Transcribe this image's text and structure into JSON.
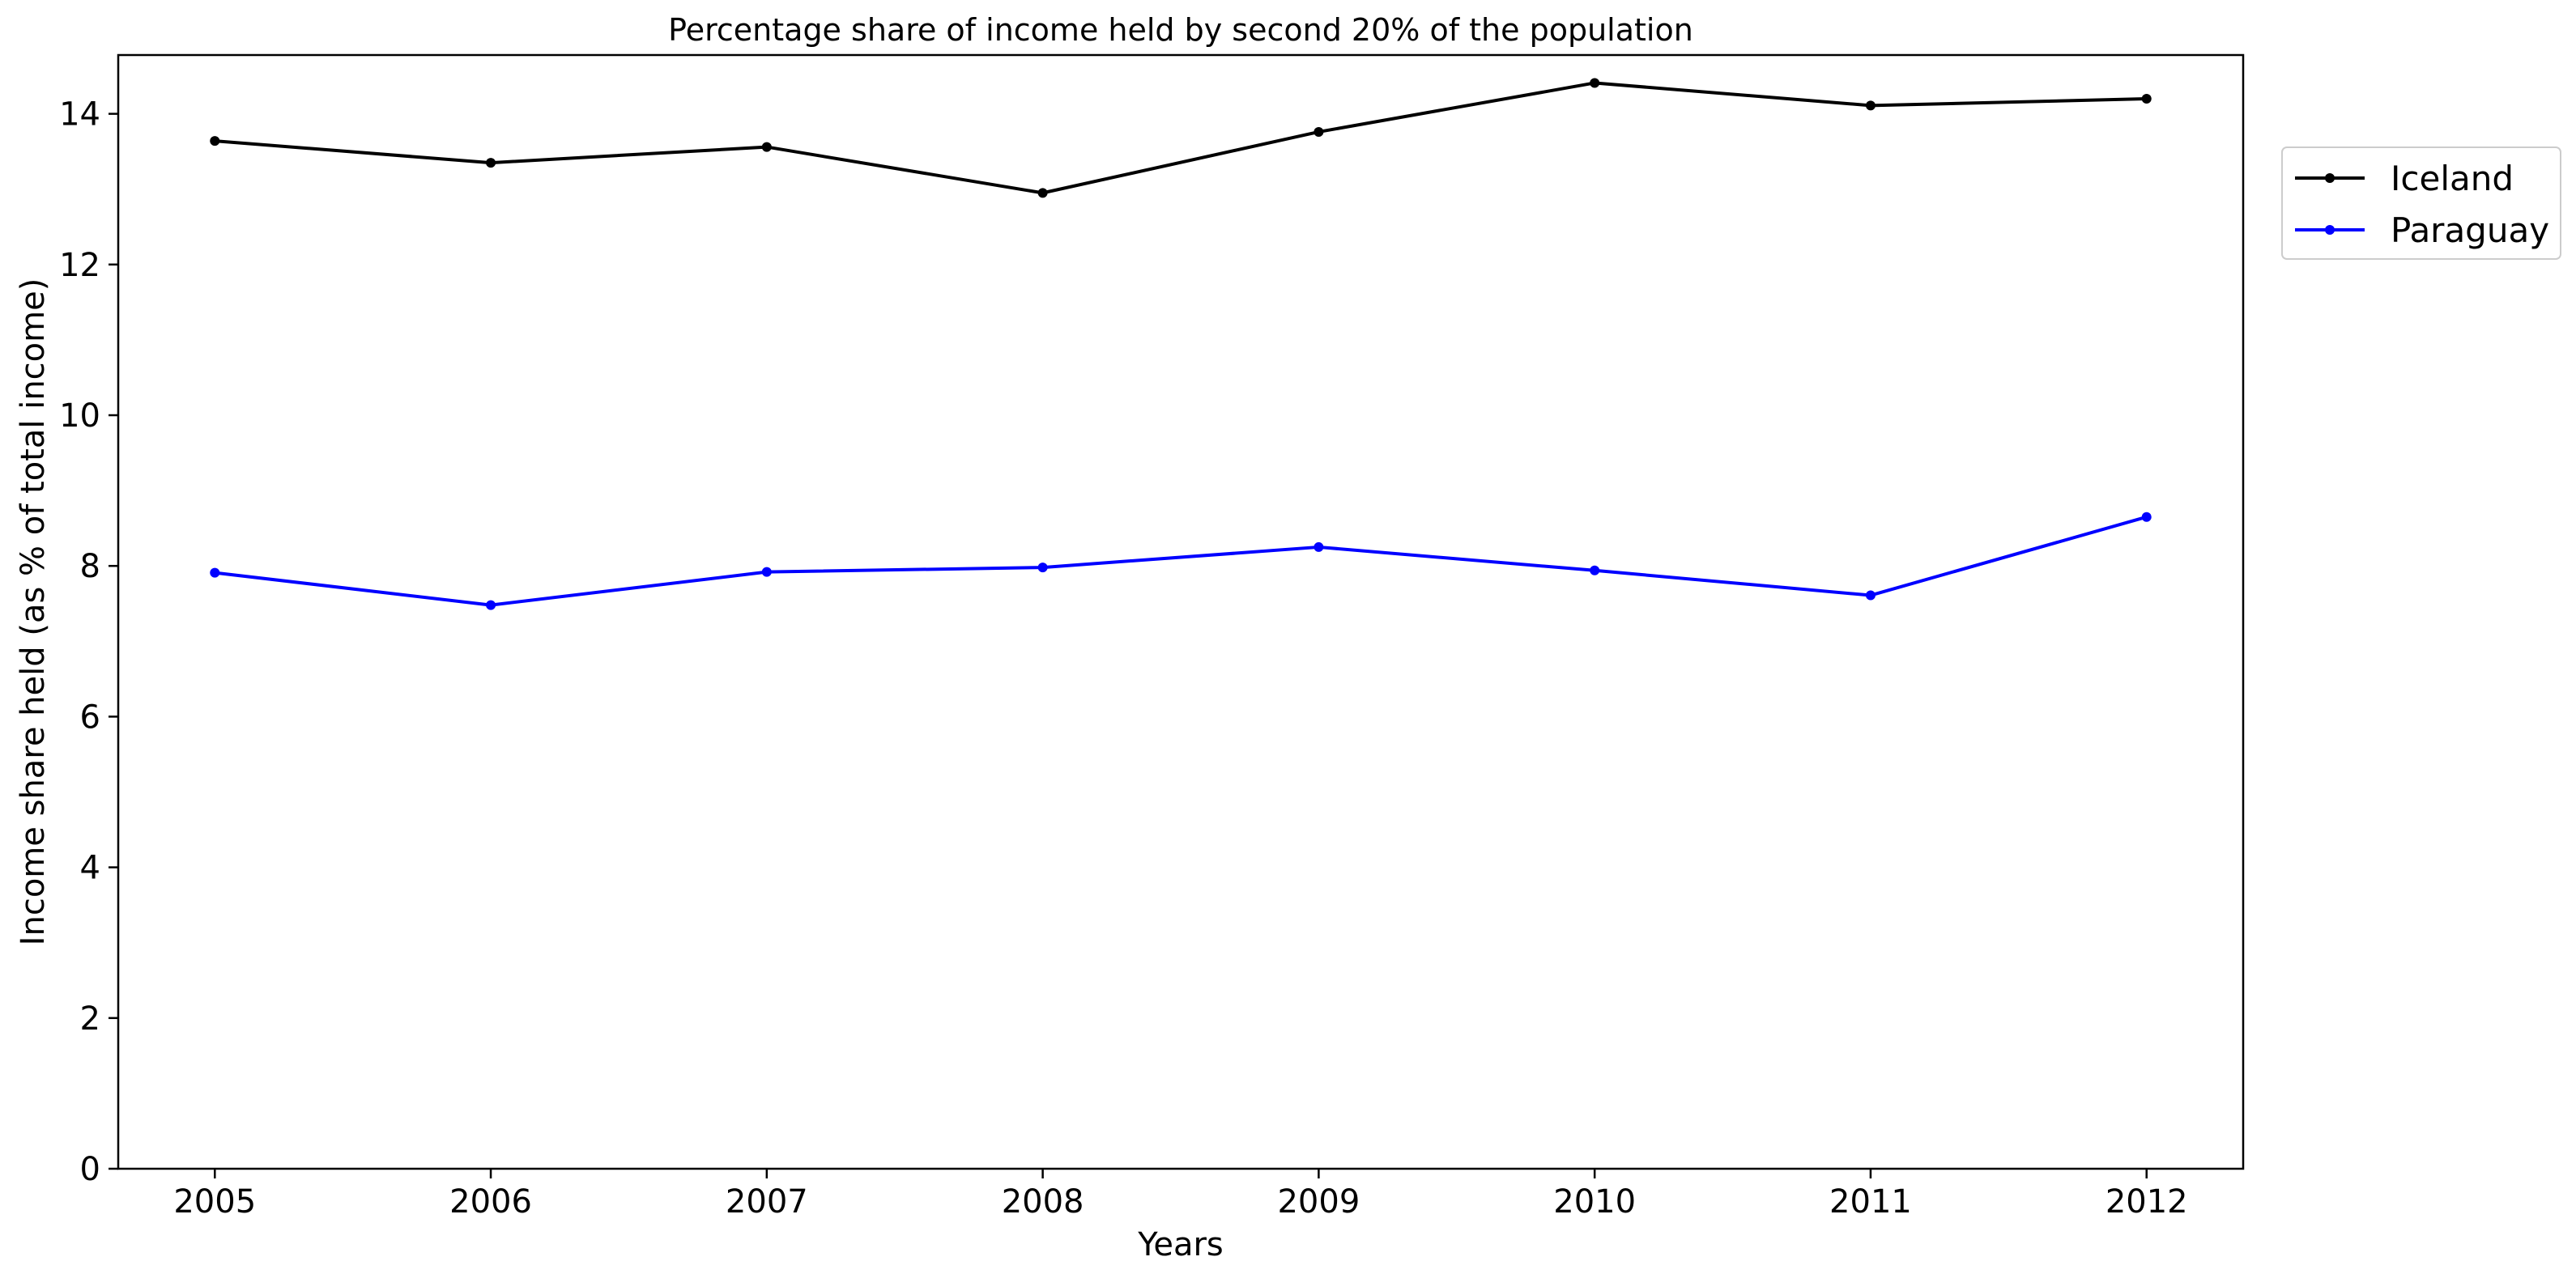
{
  "chart_data": {
    "type": "line",
    "title": "Percentage share of income held by second 20% of the population",
    "xlabel": "Years",
    "ylabel": "Income share held (as % of total income)",
    "x": [
      "2005",
      "2006",
      "2007",
      "2008",
      "2009",
      "2010",
      "2011",
      "2012"
    ],
    "xlim": [
      2004.65,
      2012.35
    ],
    "ylim": [
      0,
      14.78
    ],
    "yticks": [
      0,
      2,
      4,
      6,
      8,
      10,
      12,
      14
    ],
    "grid": false,
    "legend_position": "right, outside top",
    "series": [
      {
        "name": "Iceland",
        "color": "#000000",
        "values": [
          13.64,
          13.35,
          13.56,
          12.95,
          13.76,
          14.41,
          14.11,
          14.2
        ]
      },
      {
        "name": "Paraguay",
        "color": "#0000ff",
        "values": [
          7.91,
          7.48,
          7.92,
          7.98,
          8.25,
          7.94,
          7.61,
          8.65
        ]
      }
    ]
  }
}
